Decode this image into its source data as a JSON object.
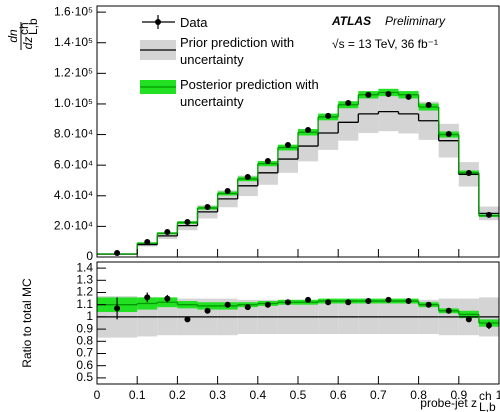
{
  "chart_data": [
    {
      "type": "step",
      "ylabel": {
        "numerator": "dn",
        "denominator": "dz",
        "sup": "ch",
        "sub": "L,b"
      },
      "annotations": {
        "experiment": "ATLAS",
        "status": "Preliminary",
        "energy": "√s = 13 TeV, 36 fb⁻¹"
      },
      "bins": [
        0,
        0.1,
        0.15,
        0.2,
        0.25,
        0.3,
        0.35,
        0.4,
        0.45,
        0.5,
        0.55,
        0.6,
        0.65,
        0.7,
        0.75,
        0.8,
        0.85,
        0.9,
        0.95,
        1
      ],
      "x": [
        0.05,
        0.125,
        0.175,
        0.225,
        0.275,
        0.325,
        0.375,
        0.425,
        0.475,
        0.525,
        0.575,
        0.625,
        0.675,
        0.725,
        0.775,
        0.825,
        0.875,
        0.925,
        0.975
      ],
      "xlim": [
        0,
        1
      ],
      "ylim": [
        0,
        164000
      ],
      "yticks": [
        0,
        {
          "value": 20000,
          "label": "2.0·10⁴"
        },
        {
          "value": 40000,
          "label": "4.0·10⁴"
        },
        {
          "value": 60000,
          "label": "6.0·10⁴"
        },
        {
          "value": 80000,
          "label": "8.0·10⁴"
        },
        {
          "value": 100000,
          "label": "1.0·10⁵"
        },
        {
          "value": 120000,
          "label": "1.2·10⁵"
        },
        {
          "value": 140000,
          "label": "1.4·10⁵"
        },
        {
          "value": 160000,
          "label": "1.6·10⁵"
        }
      ],
      "series": [
        {
          "name": "Prior prediction with uncertainty",
          "style": "band",
          "color": "#000000",
          "band_color": "#d4d4d4",
          "values": [
            1900,
            8100,
            13800,
            20500,
            29500,
            38000,
            46500,
            55000,
            64000,
            72500,
            81000,
            88000,
            93500,
            95000,
            93500,
            89000,
            76000,
            54000,
            28500
          ],
          "errors": [
            300,
            1200,
            2000,
            3000,
            4300,
            5500,
            6700,
            7800,
            9000,
            10000,
            11000,
            12000,
            12500,
            12800,
            12800,
            12500,
            11000,
            8000,
            4500
          ]
        },
        {
          "name": "Posterior prediction with uncertainty",
          "style": "band",
          "color": "#009a00",
          "band_color": "#22e022",
          "values": [
            2000,
            9000,
            15500,
            22500,
            32000,
            41500,
            51000,
            61000,
            71500,
            81500,
            91500,
            99500,
            106000,
            107500,
            106000,
            98000,
            80000,
            55000,
            27000
          ],
          "errors": [
            150,
            600,
            700,
            900,
            1100,
            1300,
            1500,
            1700,
            1900,
            2100,
            2200,
            2300,
            2400,
            2400,
            2400,
            2300,
            2000,
            1500,
            900
          ]
        },
        {
          "name": "Data",
          "style": "points",
          "color": "#000000",
          "values": [
            2600,
            9800,
            16300,
            22900,
            32700,
            43100,
            52300,
            62700,
            73200,
            83000,
            92200,
            100600,
            105900,
            106500,
            104600,
            99300,
            80400,
            54900,
            27500
          ]
        }
      ]
    },
    {
      "type": "step",
      "ylabel": "Ratio to total MC",
      "xlabel": {
        "text": "probe-jet z",
        "sup": "ch",
        "sub": "L,b"
      },
      "bins": [
        0,
        0.1,
        0.15,
        0.2,
        0.25,
        0.3,
        0.35,
        0.4,
        0.45,
        0.5,
        0.55,
        0.6,
        0.65,
        0.7,
        0.75,
        0.8,
        0.85,
        0.9,
        0.95,
        1
      ],
      "x": [
        0.05,
        0.125,
        0.175,
        0.225,
        0.275,
        0.325,
        0.375,
        0.425,
        0.475,
        0.525,
        0.575,
        0.625,
        0.675,
        0.725,
        0.775,
        0.825,
        0.875,
        0.925,
        0.975
      ],
      "xlim": [
        0,
        1
      ],
      "xticks": [
        0,
        0.1,
        0.2,
        0.3,
        0.4,
        0.5,
        0.6,
        0.7,
        0.8,
        0.9,
        1
      ],
      "ylim": [
        0.45,
        1.45
      ],
      "yticks": [
        0.5,
        0.6,
        0.7,
        0.8,
        0.9,
        1,
        1.1,
        1.2,
        1.3,
        1.4
      ],
      "series": [
        {
          "style": "band",
          "color": "#000000",
          "band_color": "#d4d4d4",
          "values": [
            1,
            1,
            1,
            1,
            1,
            1,
            1,
            1,
            1,
            1,
            1,
            1,
            1,
            1,
            1,
            1,
            1,
            1,
            1
          ],
          "errors": [
            0.17,
            0.16,
            0.15,
            0.15,
            0.15,
            0.15,
            0.14,
            0.14,
            0.14,
            0.14,
            0.14,
            0.14,
            0.14,
            0.14,
            0.14,
            0.14,
            0.15,
            0.15,
            0.16
          ]
        },
        {
          "style": "band",
          "color": "#009a00",
          "band_color": "#22e022",
          "values": [
            1.1,
            1.11,
            1.12,
            1.1,
            1.09,
            1.09,
            1.1,
            1.11,
            1.12,
            1.12,
            1.13,
            1.13,
            1.13,
            1.13,
            1.13,
            1.1,
            1.05,
            1.02,
            0.95
          ],
          "errors": [
            0.06,
            0.05,
            0.04,
            0.03,
            0.03,
            0.03,
            0.02,
            0.02,
            0.02,
            0.02,
            0.02,
            0.02,
            0.02,
            0.02,
            0.02,
            0.02,
            0.02,
            0.03,
            0.03
          ]
        },
        {
          "style": "points",
          "color": "#000000",
          "values": [
            1.07,
            1.16,
            1.15,
            0.98,
            1.05,
            1.1,
            1.08,
            1.1,
            1.12,
            1.14,
            1.12,
            1.12,
            1.13,
            1.14,
            1.13,
            1.1,
            1.05,
            0.98,
            0.93
          ],
          "errors": [
            0.09,
            0.04,
            0.03,
            0.02,
            0.02,
            0.02,
            0.02,
            0.01,
            0.01,
            0.01,
            0.01,
            0.01,
            0.01,
            0.01,
            0.01,
            0.01,
            0.01,
            0.02,
            0.03
          ]
        }
      ]
    }
  ]
}
